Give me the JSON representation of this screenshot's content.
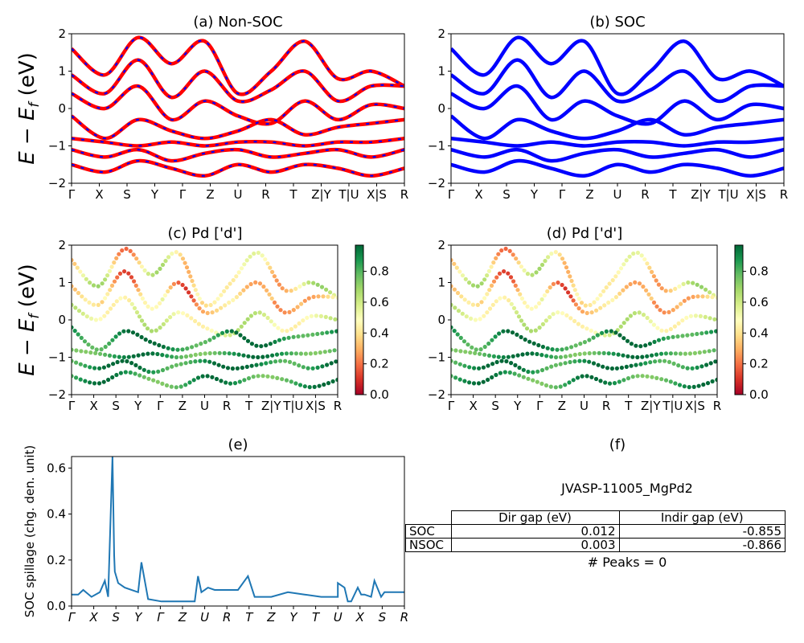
{
  "figure": {
    "jid": "JVASP-11005_MgPd2",
    "peaks_text": "# Peaks = 0"
  },
  "kpath_labels": [
    "Γ",
    "X",
    "S",
    "Y",
    "Γ",
    "Z",
    "U",
    "R",
    "T",
    "Z|Y",
    "T|U",
    "X|S",
    "R"
  ],
  "panel_titles": {
    "a": "(a) Non-SOC",
    "b": "(b) SOC",
    "c": "(c)  Pd ['d']",
    "d": "(d) Pd ['d']",
    "e": "(e)",
    "f": "(f)"
  },
  "band_ylabel": "E − E_f (eV)",
  "band_yticks": [
    -2,
    -1,
    0,
    1,
    2
  ],
  "colorbar_ticks": [
    "0.0",
    "0.2",
    "0.4",
    "0.6",
    "0.8"
  ],
  "colors": {
    "nonsoc_line": "#ff0000",
    "nonsoc_dash": "#0000ff",
    "soc_line": "#0000ff",
    "spillage_line": "#1f77b4",
    "cmap": [
      "#a50026",
      "#d73027",
      "#f46d43",
      "#fdae61",
      "#fee08b",
      "#ffffbf",
      "#d9ef8b",
      "#a6d96a",
      "#66bd63",
      "#1a9850",
      "#006837"
    ]
  },
  "table": {
    "headers": [
      "",
      "Dir gap (eV)",
      "Indir gap (eV)"
    ],
    "rows": [
      {
        "label": "SOC",
        "dir": "0.012",
        "indir": "-0.855"
      },
      {
        "label": "NSOC",
        "dir": "0.003",
        "indir": "-0.866"
      }
    ]
  },
  "chart_data": [
    {
      "type": "line",
      "title": "(a) Non-SOC",
      "ylabel": "E − E_f (eV)",
      "ylim": [
        -2,
        2
      ],
      "x_ticks": [
        "Γ",
        "X",
        "S",
        "Y",
        "Γ",
        "Z",
        "U",
        "R",
        "T",
        "Z|Y",
        "T|U",
        "X|S",
        "R"
      ],
      "x": [
        0,
        0.1,
        0.2,
        0.3,
        0.4,
        0.5,
        0.6,
        0.7,
        0.8,
        0.9,
        1.0
      ],
      "series": [
        {
          "values": [
            1.6,
            0.9,
            1.9,
            1.2,
            1.8,
            0.4,
            1.0,
            1.8,
            0.8,
            1.0,
            0.6
          ]
        },
        {
          "values": [
            0.9,
            0.4,
            1.3,
            0.3,
            1.0,
            0.2,
            0.5,
            1.0,
            0.2,
            0.6,
            0.6
          ]
        },
        {
          "values": [
            0.4,
            0.0,
            0.6,
            -0.3,
            0.2,
            -0.2,
            -0.4,
            0.2,
            -0.3,
            0.1,
            0.0
          ]
        },
        {
          "values": [
            -0.2,
            -0.8,
            -0.3,
            -0.6,
            -0.8,
            -0.6,
            -0.3,
            -0.7,
            -0.5,
            -0.4,
            -0.3
          ]
        },
        {
          "values": [
            -0.8,
            -0.9,
            -1.0,
            -0.9,
            -1.0,
            -0.9,
            -0.9,
            -1.0,
            -0.9,
            -0.9,
            -0.8
          ]
        },
        {
          "values": [
            -1.1,
            -1.3,
            -1.1,
            -1.4,
            -1.2,
            -1.1,
            -1.3,
            -1.2,
            -1.1,
            -1.3,
            -1.1
          ]
        },
        {
          "values": [
            -1.5,
            -1.7,
            -1.4,
            -1.6,
            -1.8,
            -1.5,
            -1.7,
            -1.5,
            -1.6,
            -1.8,
            -1.6
          ]
        }
      ]
    },
    {
      "type": "line",
      "title": "(b) SOC",
      "ylim": [
        -2,
        2
      ],
      "x_ticks": [
        "Γ",
        "X",
        "S",
        "Y",
        "Γ",
        "Z",
        "U",
        "R",
        "T",
        "Z|Y",
        "T|U",
        "X|S",
        "R"
      ],
      "x": [
        0,
        0.1,
        0.2,
        0.3,
        0.4,
        0.5,
        0.6,
        0.7,
        0.8,
        0.9,
        1.0
      ],
      "series": [
        {
          "values": [
            1.6,
            0.9,
            1.9,
            1.2,
            1.8,
            0.4,
            1.0,
            1.8,
            0.8,
            1.0,
            0.6
          ]
        },
        {
          "values": [
            0.9,
            0.4,
            1.3,
            0.3,
            1.0,
            0.2,
            0.5,
            1.0,
            0.2,
            0.6,
            0.6
          ]
        },
        {
          "values": [
            0.4,
            0.0,
            0.6,
            -0.3,
            0.2,
            -0.2,
            -0.4,
            0.2,
            -0.3,
            0.1,
            0.0
          ]
        },
        {
          "values": [
            -0.2,
            -0.8,
            -0.3,
            -0.6,
            -0.8,
            -0.6,
            -0.3,
            -0.7,
            -0.5,
            -0.4,
            -0.3
          ]
        },
        {
          "values": [
            -0.8,
            -0.9,
            -1.0,
            -0.9,
            -1.0,
            -0.9,
            -0.9,
            -1.0,
            -0.9,
            -0.9,
            -0.8
          ]
        },
        {
          "values": [
            -1.1,
            -1.3,
            -1.1,
            -1.4,
            -1.2,
            -1.1,
            -1.3,
            -1.2,
            -1.1,
            -1.3,
            -1.1
          ]
        },
        {
          "values": [
            -1.5,
            -1.7,
            -1.4,
            -1.6,
            -1.8,
            -1.5,
            -1.7,
            -1.5,
            -1.6,
            -1.8,
            -1.6
          ]
        }
      ]
    },
    {
      "type": "scatter",
      "title": "(c)  Pd ['d']",
      "ylabel": "E − E_f (eV)",
      "ylim": [
        -2,
        2
      ],
      "colorbar": [
        0.0,
        0.97
      ],
      "x_ticks": [
        "Γ",
        "X",
        "S",
        "Y",
        "Γ",
        "Z",
        "U",
        "R",
        "T",
        "Z|Y",
        "T|U",
        "X|S",
        "R"
      ],
      "x": [
        0,
        0.1,
        0.2,
        0.3,
        0.4,
        0.5,
        0.6,
        0.7,
        0.8,
        0.9,
        1.0
      ],
      "series": [
        {
          "values": [
            1.6,
            0.9,
            1.9,
            1.2,
            1.8,
            0.4,
            1.0,
            1.8,
            0.8,
            1.0,
            0.6
          ],
          "weight": 0.45
        },
        {
          "values": [
            0.9,
            0.4,
            1.3,
            0.3,
            1.0,
            0.2,
            0.5,
            1.0,
            0.2,
            0.6,
            0.6
          ],
          "weight": 0.35
        },
        {
          "values": [
            0.4,
            0.0,
            0.6,
            -0.3,
            0.2,
            -0.2,
            -0.4,
            0.2,
            -0.3,
            0.1,
            0.0
          ],
          "weight": 0.55
        },
        {
          "values": [
            -0.2,
            -0.8,
            -0.3,
            -0.6,
            -0.8,
            -0.6,
            -0.3,
            -0.7,
            -0.5,
            -0.4,
            -0.3
          ],
          "weight": 0.9
        },
        {
          "values": [
            -0.8,
            -0.9,
            -1.0,
            -0.9,
            -1.0,
            -0.9,
            -0.9,
            -1.0,
            -0.9,
            -0.9,
            -0.8
          ],
          "weight": 0.85
        },
        {
          "values": [
            -1.1,
            -1.3,
            -1.1,
            -1.4,
            -1.2,
            -1.1,
            -1.3,
            -1.2,
            -1.1,
            -1.3,
            -1.1
          ],
          "weight": 0.9
        },
        {
          "values": [
            -1.5,
            -1.7,
            -1.4,
            -1.6,
            -1.8,
            -1.5,
            -1.7,
            -1.5,
            -1.6,
            -1.8,
            -1.6
          ],
          "weight": 0.85
        }
      ]
    },
    {
      "type": "scatter",
      "title": "(d) Pd ['d']",
      "ylim": [
        -2,
        2
      ],
      "colorbar": [
        0.0,
        0.97
      ],
      "x_ticks": [
        "Γ",
        "X",
        "S",
        "Y",
        "Γ",
        "Z",
        "U",
        "R",
        "T",
        "Z|Y",
        "T|U",
        "X|S",
        "R"
      ],
      "x": [
        0,
        0.1,
        0.2,
        0.3,
        0.4,
        0.5,
        0.6,
        0.7,
        0.8,
        0.9,
        1.0
      ],
      "series": [
        {
          "values": [
            1.6,
            0.9,
            1.9,
            1.2,
            1.8,
            0.4,
            1.0,
            1.8,
            0.8,
            1.0,
            0.6
          ],
          "weight": 0.45
        },
        {
          "values": [
            0.9,
            0.4,
            1.3,
            0.3,
            1.0,
            0.2,
            0.5,
            1.0,
            0.2,
            0.6,
            0.6
          ],
          "weight": 0.35
        },
        {
          "values": [
            0.4,
            0.0,
            0.6,
            -0.3,
            0.2,
            -0.2,
            -0.4,
            0.2,
            -0.3,
            0.1,
            0.0
          ],
          "weight": 0.55
        },
        {
          "values": [
            -0.2,
            -0.8,
            -0.3,
            -0.6,
            -0.8,
            -0.6,
            -0.3,
            -0.7,
            -0.5,
            -0.4,
            -0.3
          ],
          "weight": 0.9
        },
        {
          "values": [
            -0.8,
            -0.9,
            -1.0,
            -0.9,
            -1.0,
            -0.9,
            -0.9,
            -1.0,
            -0.9,
            -0.9,
            -0.8
          ],
          "weight": 0.85
        },
        {
          "values": [
            -1.1,
            -1.3,
            -1.1,
            -1.4,
            -1.2,
            -1.1,
            -1.3,
            -1.2,
            -1.1,
            -1.3,
            -1.1
          ],
          "weight": 0.9
        },
        {
          "values": [
            -1.5,
            -1.7,
            -1.4,
            -1.6,
            -1.8,
            -1.5,
            -1.7,
            -1.5,
            -1.6,
            -1.8,
            -1.6
          ],
          "weight": 0.85
        }
      ]
    },
    {
      "type": "line",
      "title": "(e)",
      "ylabel": "SOC spillage (chg. den. unit)",
      "ylim": [
        0,
        0.65
      ],
      "yticks": [
        0.0,
        0.2,
        0.4,
        0.6
      ],
      "x_ticks": [
        "Γ",
        "X",
        "S",
        "Y",
        "Γ",
        "Z",
        "U",
        "R",
        "T",
        "Z",
        "Y",
        "T",
        "U",
        "X",
        "S",
        "R"
      ],
      "x": [
        0,
        0.02,
        0.035,
        0.06,
        0.085,
        0.1,
        0.11,
        0.123,
        0.128,
        0.13,
        0.14,
        0.16,
        0.2,
        0.21,
        0.23,
        0.27,
        0.33,
        0.37,
        0.38,
        0.39,
        0.41,
        0.43,
        0.45,
        0.5,
        0.53,
        0.55,
        0.6,
        0.65,
        0.7,
        0.75,
        0.8,
        0.8,
        0.82,
        0.83,
        0.84,
        0.86,
        0.87,
        0.88,
        0.9,
        0.91,
        0.93,
        0.94,
        0.96,
        1.0
      ],
      "series": [
        {
          "name": "",
          "values": [
            0.05,
            0.05,
            0.07,
            0.04,
            0.06,
            0.11,
            0.04,
            0.65,
            0.22,
            0.15,
            0.1,
            0.08,
            0.06,
            0.19,
            0.03,
            0.02,
            0.02,
            0.02,
            0.13,
            0.06,
            0.08,
            0.07,
            0.07,
            0.07,
            0.13,
            0.04,
            0.04,
            0.06,
            0.05,
            0.04,
            0.04,
            0.1,
            0.08,
            0.02,
            0.02,
            0.08,
            0.05,
            0.05,
            0.04,
            0.11,
            0.04,
            0.06,
            0.06,
            0.06
          ]
        }
      ]
    }
  ]
}
